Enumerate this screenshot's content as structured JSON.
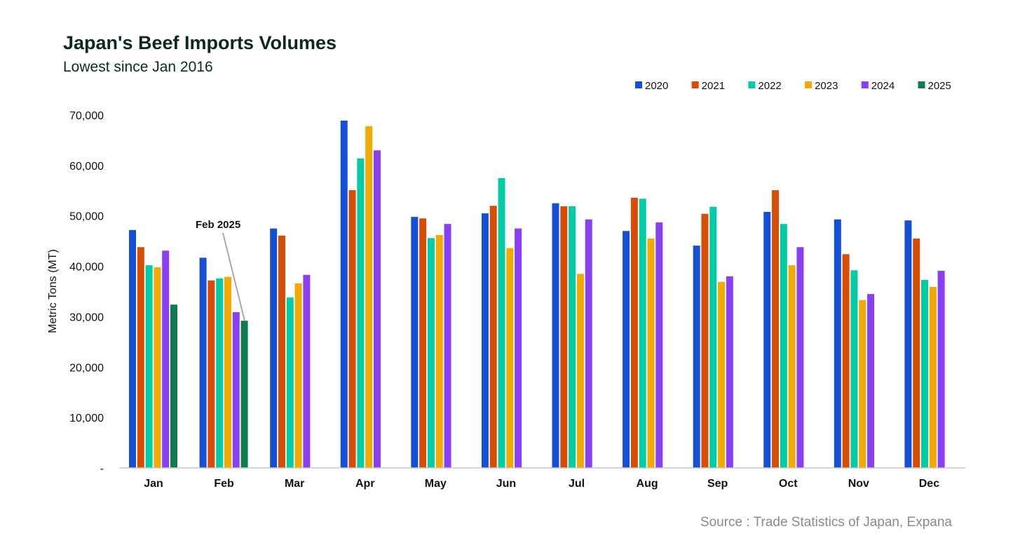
{
  "chart_data": {
    "type": "bar",
    "title": "Japan's Beef Imports Volumes",
    "subtitle": "Lowest since Jan 2016",
    "ylabel": "Metric Tons (MT)",
    "xlabel": "",
    "ylim": [
      0,
      70000
    ],
    "yticks": [
      0,
      10000,
      20000,
      30000,
      40000,
      50000,
      60000,
      70000
    ],
    "ytick_labels": [
      "-",
      "10,000",
      "20,000",
      "30,000",
      "40,000",
      "50,000",
      "60,000",
      "70,000"
    ],
    "grid": false,
    "legend_position": "top-right",
    "categories": [
      "Jan",
      "Feb",
      "Mar",
      "Apr",
      "May",
      "Jun",
      "Jul",
      "Aug",
      "Sep",
      "Oct",
      "Nov",
      "Dec"
    ],
    "series": [
      {
        "name": "2020",
        "color": "#144fd6",
        "values": [
          47200,
          41700,
          47500,
          68900,
          49800,
          50500,
          52500,
          47000,
          44100,
          50800,
          49300,
          49100
        ]
      },
      {
        "name": "2021",
        "color": "#d64d03",
        "values": [
          43800,
          37200,
          46100,
          55100,
          49500,
          52000,
          51900,
          53600,
          50400,
          55100,
          42400,
          45500
        ]
      },
      {
        "name": "2022",
        "color": "#00cca5",
        "values": [
          40200,
          37600,
          33800,
          61400,
          45600,
          57500,
          51900,
          53400,
          51800,
          48400,
          39200,
          37300
        ]
      },
      {
        "name": "2023",
        "color": "#f2a900",
        "values": [
          39800,
          37900,
          36600,
          67800,
          46200,
          43600,
          38500,
          45500,
          36900,
          40200,
          33300,
          35900
        ]
      },
      {
        "name": "2024",
        "color": "#8840f2",
        "values": [
          43100,
          30900,
          38300,
          63000,
          48400,
          47500,
          49300,
          48700,
          38000,
          43800,
          34500,
          39100
        ]
      },
      {
        "name": "2025",
        "color": "#0e7c4f",
        "values": [
          32400,
          29200,
          null,
          null,
          null,
          null,
          null,
          null,
          null,
          null,
          null,
          null
        ]
      }
    ],
    "annotations": [
      {
        "text": "Feb 2025",
        "category": "Feb",
        "series": "2025"
      }
    ],
    "source": "Source : Trade Statistics of Japan, Expana"
  }
}
